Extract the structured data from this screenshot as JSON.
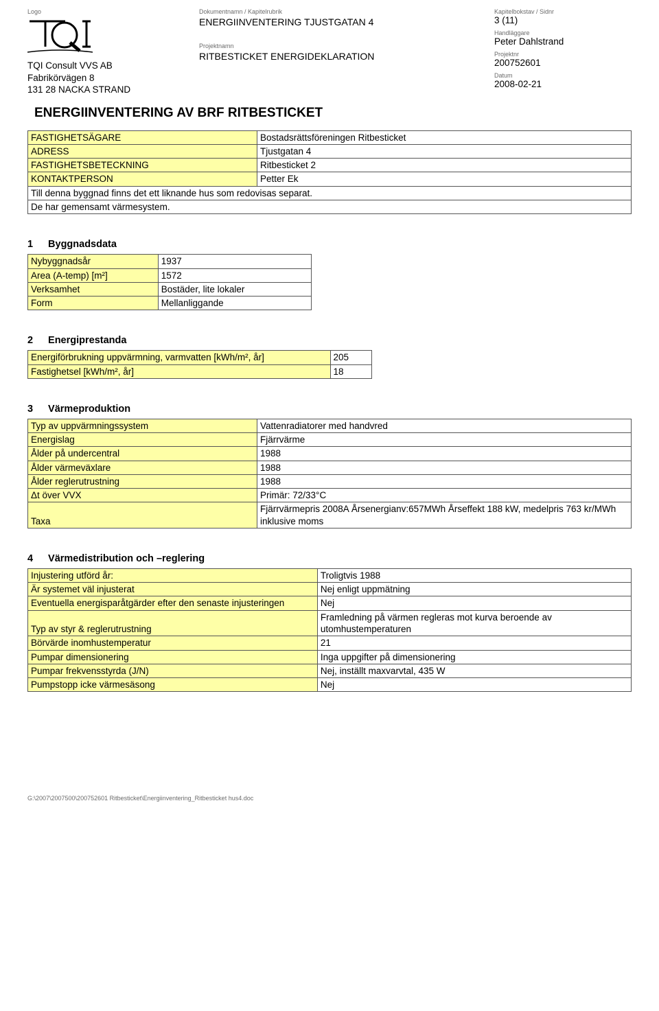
{
  "header": {
    "labels": {
      "logo": "Logo",
      "dokumentnamn": "Dokumentnamn / Kapitelrubrik",
      "kapitelbokstav": "Kapitelbokstav / Sidnr",
      "handlaggare": "Handläggare",
      "projektnamn": "Projektnamn",
      "projektnr": "Projektnr",
      "datum": "Datum"
    },
    "company": {
      "line1": "TQI Consult VVS AB",
      "line2": "Fabrikörvägen 8",
      "line3": "131 28 NACKA STRAND"
    },
    "dokumentnamn_value": "ENERGIINVENTERING TJUSTGATAN 4",
    "projektnamn_value": "RITBESTICKET ENERGIDEKLARATION",
    "sidnr": "3 (11)",
    "handlaggare_value": "Peter Dahlstrand",
    "projektnr_value": "200752601",
    "datum_value": "2008-02-21"
  },
  "main_title": "ENERGIINVENTERING AV BRF RITBESTICKET",
  "owner_table": {
    "rows": [
      {
        "label": "FASTIGHETSÄGARE",
        "value": "Bostadsrättsföreningen Ritbesticket"
      },
      {
        "label": "ADRESS",
        "value": "Tjustgatan 4"
      },
      {
        "label": "FASTIGHETSBETECKNING",
        "value": "Ritbesticket 2"
      },
      {
        "label": "KONTAKTPERSON",
        "value": "Petter Ek"
      }
    ],
    "note_line1": "Till denna byggnad finns det ett liknande hus som redovisas separat.",
    "note_line2": "De har gemensamt värmesystem."
  },
  "section1": {
    "num": "1",
    "title": "Byggnadsdata",
    "rows": [
      {
        "label": "Nybyggnadsår",
        "value": "1937"
      },
      {
        "label": "Area (A-temp) [m²]",
        "value": "1572"
      },
      {
        "label": "Verksamhet",
        "value": "Bostäder, lite lokaler"
      },
      {
        "label": "Form",
        "value": "Mellanliggande"
      }
    ]
  },
  "section2": {
    "num": "2",
    "title": "Energiprestanda",
    "rows": [
      {
        "label": "Energiförbrukning uppvärmning, varmvatten [kWh/m², år]",
        "value": "205"
      },
      {
        "label": "Fastighetsel [kWh/m², år]",
        "value": "18"
      }
    ]
  },
  "section3": {
    "num": "3",
    "title": "Värmeproduktion",
    "rows": [
      {
        "label": "Typ av uppvärmningssystem",
        "value": " Vattenradiatorer med handvred"
      },
      {
        "label": "Energislag",
        "value": " Fjärrvärme"
      },
      {
        "label": "Ålder på undercentral",
        "value": "1988"
      },
      {
        "label": "Ålder värmeväxlare",
        "value": "1988"
      },
      {
        "label": "Ålder reglerutrustning",
        "value": "1988"
      },
      {
        "label": "Δt över VVX",
        "value": "Primär: 72/33°C"
      },
      {
        "label": "Taxa",
        "value": "Fjärrvärmepris 2008A Årsenergianv:657MWh Årseffekt 188 kW, medelpris 763 kr/MWh inklusive moms"
      }
    ]
  },
  "section4": {
    "num": "4",
    "title": "Värmedistribution och –reglering",
    "rows": [
      {
        "label": "Injustering utförd år:",
        "value": "Troligtvis 1988"
      },
      {
        "label": "Är systemet väl injusterat",
        "value": "Nej enligt uppmätning"
      },
      {
        "label": "Eventuella energisparåtgärder efter den senaste injusteringen",
        "value": "Nej"
      },
      {
        "label": "Typ av styr & reglerutrustning",
        "value": "Framledning på värmen regleras mot kurva beroende av utomhustemperaturen"
      },
      {
        "label": "Börvärde inomhustemperatur",
        "value": "21"
      },
      {
        "label": "Pumpar dimensionering",
        "value": "Inga uppgifter på dimensionering"
      },
      {
        "label": "Pumpar frekvensstyrda (J/N)",
        "value": "Nej, inställt  maxvarvtal, 435 W"
      },
      {
        "label": "Pumpstopp icke värmesäsong",
        "value": "Nej"
      }
    ]
  },
  "footer": "G:\\2007\\2007500\\200752601 Ritbesticket\\Energiinventering_Ritbesticket hus4.doc"
}
